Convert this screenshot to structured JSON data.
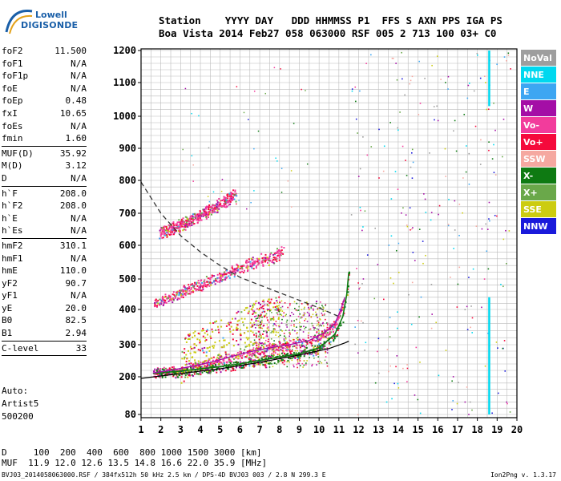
{
  "logo": {
    "line1": "Lowell",
    "line2": "DIGISONDE"
  },
  "header": {
    "line1": "Station    YYYY DAY   DDD HHMMSS P1  FFS S AXN PPS IGA PS",
    "line2": "Boa Vista 2014 Feb27 058 063000 RSF 005 2 713 100 03+ C0"
  },
  "params": [
    [
      {
        "label": "foF2",
        "value": "11.500"
      },
      {
        "label": "foF1",
        "value": "N/A"
      },
      {
        "label": "foF1p",
        "value": "N/A"
      },
      {
        "label": "foE",
        "value": "N/A"
      },
      {
        "label": "foEp",
        "value": "0.48"
      },
      {
        "label": "fxI",
        "value": "10.65"
      },
      {
        "label": "foEs",
        "value": "N/A"
      },
      {
        "label": "fmin",
        "value": "1.60"
      }
    ],
    [
      {
        "label": "MUF(D)",
        "value": "35.92"
      },
      {
        "label": "M(D)",
        "value": "3.12"
      },
      {
        "label": "D",
        "value": "N/A"
      }
    ],
    [
      {
        "label": "h`F",
        "value": "208.0"
      },
      {
        "label": "h`F2",
        "value": "208.0"
      },
      {
        "label": "h`E",
        "value": "N/A"
      },
      {
        "label": "h`Es",
        "value": "N/A"
      }
    ],
    [
      {
        "label": "hmF2",
        "value": "310.1"
      },
      {
        "label": "hmF1",
        "value": "N/A"
      },
      {
        "label": "hmE",
        "value": "110.0"
      },
      {
        "label": "yF2",
        "value": "90.7"
      },
      {
        "label": "yF1",
        "value": "N/A"
      },
      {
        "label": "yE",
        "value": "20.0"
      },
      {
        "label": "B0",
        "value": "82.5"
      },
      {
        "label": "B1",
        "value": "2.94"
      }
    ],
    [
      {
        "label": "C-level",
        "value": "33"
      }
    ]
  ],
  "auto": {
    "line1": "Auto:",
    "line2": "Artist5",
    "line3": "500200"
  },
  "legend": [
    {
      "label": "NoVal",
      "color": "#9e9e9e"
    },
    {
      "label": "NNE",
      "color": "#00d8ef"
    },
    {
      "label": "E",
      "color": "#3da6f2"
    },
    {
      "label": "W",
      "color": "#a40ea6"
    },
    {
      "label": "Vo-",
      "color": "#f23c9c"
    },
    {
      "label": "Vo+",
      "color": "#f50a3c"
    },
    {
      "label": "SSW",
      "color": "#f5a8a0"
    },
    {
      "label": "X-",
      "color": "#0e7a12"
    },
    {
      "label": "X+",
      "color": "#6aa84a"
    },
    {
      "label": "SSE",
      "color": "#cccc10"
    },
    {
      "label": "NNW",
      "color": "#1a1adb"
    }
  ],
  "muf": {
    "line1": "D     100  200  400  600  800 1000 1500 3000 [km]",
    "line2": "MUF  11.9 12.0 12.6 13.5 14.8 16.6 22.0 35.9 [MHz]"
  },
  "footer": "BVJ03_2014058063000.RSF / 384fx512h 50 kHz 2.5 km / DPS-4D BVJ03 003 / 2.8 N 299.3 E",
  "version": "Ion2Png v. 1.3.17",
  "chart_data": {
    "type": "scatter",
    "xlim": [
      1,
      20
    ],
    "ylim": [
      80,
      1200
    ],
    "x_ticks": [
      "1",
      "2",
      "3",
      "4",
      "5",
      "6",
      "7",
      "8",
      "9",
      "10",
      "11",
      "12",
      "13",
      "14",
      "15",
      "16",
      "17",
      "18",
      "19",
      "20"
    ],
    "y_ticks": [
      "80",
      "200",
      "300",
      "400",
      "500",
      "600",
      "700",
      "800",
      "900",
      "1000",
      "1100",
      "1200"
    ],
    "y_tick_values": [
      80,
      200,
      300,
      400,
      500,
      600,
      700,
      800,
      900,
      1000,
      1100,
      1200
    ],
    "grid": true,
    "traces": [
      {
        "name": "O trace 1",
        "color": "#f23c9c",
        "x": [
          1.6,
          2.5,
          3.5,
          4.5,
          5.5,
          6.5,
          7.5,
          8.5,
          9.5,
          10.3,
          10.8,
          11.1,
          11.3
        ],
        "y": [
          212,
          220,
          232,
          245,
          262,
          278,
          290,
          300,
          312,
          335,
          360,
          400,
          440
        ]
      },
      {
        "name": "X trace 1",
        "color": "#0e7a12",
        "x": [
          1.6,
          3,
          4.5,
          6,
          7.5,
          9,
          10,
          10.8,
          11.2,
          11.4,
          11.5
        ],
        "y": [
          210,
          218,
          228,
          240,
          256,
          272,
          290,
          330,
          380,
          450,
          520
        ]
      },
      {
        "name": "O trace 2",
        "color": "#f23c9c",
        "x": [
          1.6,
          2.5,
          3.5,
          4.5,
          5.5,
          6.5,
          7.5,
          8.2
        ],
        "y": [
          420,
          440,
          470,
          495,
          520,
          545,
          565,
          580
        ]
      },
      {
        "name": "O trace 3",
        "color": "#f23c9c",
        "x": [
          1.9,
          3,
          4,
          5,
          5.8
        ],
        "y": [
          640,
          665,
          695,
          730,
          760
        ]
      },
      {
        "name": "Es cloud",
        "color": "#cccc10",
        "x": [
          3,
          4,
          5,
          6,
          7,
          8
        ],
        "y": [
          250,
          280,
          310,
          330,
          360,
          380
        ]
      }
    ],
    "profile_solid": {
      "x": [
        1,
        3,
        5,
        7,
        9,
        10.5,
        11.3,
        11.5
      ],
      "y": [
        195,
        210,
        225,
        245,
        268,
        288,
        305,
        310
      ]
    },
    "profile_dashed": {
      "x": [
        1,
        2,
        3,
        4,
        5,
        6,
        7,
        8,
        9,
        10,
        11
      ],
      "y": [
        795,
        700,
        630,
        580,
        540,
        505,
        480,
        455,
        430,
        405,
        380
      ]
    },
    "nne_streaks": [
      {
        "x": 18.6,
        "y": [
          1030,
          1200
        ]
      },
      {
        "x": 18.6,
        "y": [
          200,
          440
        ]
      },
      {
        "x": 18.6,
        "y": [
          80,
          200
        ]
      }
    ]
  }
}
